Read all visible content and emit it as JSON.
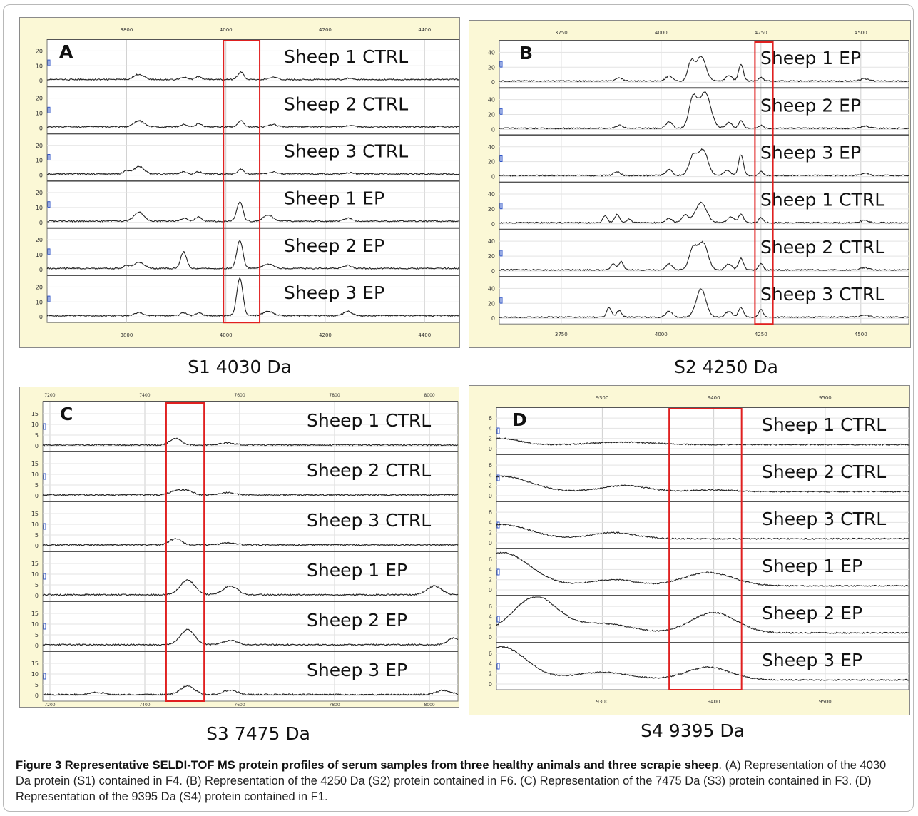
{
  "figure": {
    "caption_label": "Figure 3",
    "caption_title": "Representative SELDI-TOF MS protein profiles of serum samples from three healthy animals and three scrapie sheep",
    "caption_body": ". (A) Representation of the 4030 Da protein (S1) contained in F4. (B) Representation of the 4250 Da (S2) protein contained in F6. (C) Representation of the 7475 Da (S3) protein contained in F3. (D) Representation of the 9395 Da (S4) protein contained in F1."
  },
  "colors": {
    "panel_bg": "#fbf8d6",
    "plot_bg": "#ffffff",
    "trace": "#222222",
    "highlight": "#e02020",
    "grid": "#cfcfcf"
  },
  "chart_data": [
    {
      "type": "line",
      "letter": "A",
      "title": "S1 4030 Da",
      "xlim": [
        3640,
        4470
      ],
      "x_ticks": [
        "3800",
        "4000",
        "4200",
        "4400"
      ],
      "y_ticks": [
        "0",
        "10",
        "20"
      ],
      "ylim": [
        0,
        24
      ],
      "highlight_range": [
        3995,
        4068
      ],
      "baseline": 0.8,
      "tracks": [
        {
          "label": "Sheep 1 CTRL",
          "peaks": [
            [
              3825,
              3.5,
              10
            ],
            [
              3915,
              1.5,
              7
            ],
            [
              3945,
              2,
              6
            ],
            [
              4030,
              5,
              6
            ],
            [
              4095,
              1.5,
              8
            ],
            [
              4250,
              1,
              8
            ]
          ]
        },
        {
          "label": "Sheep 2 CTRL",
          "peaks": [
            [
              3825,
              4,
              10
            ],
            [
              3915,
              1.5,
              7
            ],
            [
              3945,
              2,
              6
            ],
            [
              4030,
              4,
              6
            ],
            [
              4095,
              1.5,
              8
            ],
            [
              4250,
              1,
              8
            ]
          ]
        },
        {
          "label": "Sheep 3 CTRL",
          "peaks": [
            [
              3800,
              2,
              6
            ],
            [
              3825,
              5,
              10
            ],
            [
              3915,
              1.5,
              7
            ],
            [
              3945,
              1.5,
              6
            ],
            [
              4030,
              3,
              6
            ],
            [
              4095,
              1.5,
              8
            ],
            [
              4250,
              1,
              8
            ]
          ]
        },
        {
          "label": "Sheep 1 EP",
          "peaks": [
            [
              3825,
              6,
              10
            ],
            [
              3915,
              2,
              7
            ],
            [
              3945,
              3,
              6
            ],
            [
              4028,
              13,
              6
            ],
            [
              4085,
              4,
              10
            ],
            [
              4245,
              2,
              8
            ]
          ]
        },
        {
          "label": "Sheep 2 EP",
          "peaks": [
            [
              3800,
              2,
              6
            ],
            [
              3825,
              4,
              10
            ],
            [
              3915,
              11,
              6
            ],
            [
              4028,
              19,
              6
            ],
            [
              4085,
              3,
              10
            ],
            [
              4245,
              2,
              8
            ]
          ]
        },
        {
          "label": "Sheep 3 EP",
          "peaks": [
            [
              3825,
              2,
              8
            ],
            [
              3915,
              2,
              6
            ],
            [
              3945,
              2,
              6
            ],
            [
              4028,
              25,
              6
            ],
            [
              4085,
              3,
              10
            ],
            [
              4245,
              3,
              8
            ]
          ]
        }
      ]
    },
    {
      "type": "line",
      "letter": "B",
      "title": "S2 4250 Da",
      "xlim": [
        3595,
        4620
      ],
      "x_ticks": [
        "3750",
        "4000",
        "4250",
        "4500"
      ],
      "y_ticks": [
        "0",
        "20",
        "40"
      ],
      "ylim": [
        0,
        48
      ],
      "highlight_range": [
        4235,
        4280
      ],
      "baseline": 1.5,
      "tracks": [
        {
          "label": "Sheep 1 EP",
          "peaks": [
            [
              3895,
              4,
              8
            ],
            [
              4020,
              7,
              8
            ],
            [
              4075,
              25,
              8
            ],
            [
              4100,
              33,
              12
            ],
            [
              4170,
              7,
              8
            ],
            [
              4200,
              22,
              6
            ],
            [
              4250,
              5,
              5
            ],
            [
              4510,
              3,
              10
            ]
          ]
        },
        {
          "label": "Sheep 2 EP",
          "peaks": [
            [
              3895,
              4,
              8
            ],
            [
              4020,
              9,
              8
            ],
            [
              4080,
              40,
              10
            ],
            [
              4110,
              48,
              14
            ],
            [
              4170,
              8,
              8
            ],
            [
              4200,
              10,
              6
            ],
            [
              4250,
              4,
              5
            ],
            [
              4510,
              3,
              10
            ]
          ]
        },
        {
          "label": "Sheep 3 EP",
          "peaks": [
            [
              3890,
              5,
              8
            ],
            [
              4020,
              8,
              8
            ],
            [
              4080,
              25,
              10
            ],
            [
              4105,
              34,
              12
            ],
            [
              4165,
              7,
              8
            ],
            [
              4200,
              28,
              6
            ],
            [
              4250,
              5,
              5
            ],
            [
              4510,
              3,
              10
            ]
          ]
        },
        {
          "label": "Sheep 1 CTRL",
          "peaks": [
            [
              3860,
              9,
              6
            ],
            [
              3890,
              11,
              6
            ],
            [
              3920,
              5,
              6
            ],
            [
              4020,
              6,
              8
            ],
            [
              4060,
              10,
              8
            ],
            [
              4100,
              27,
              14
            ],
            [
              4175,
              8,
              8
            ],
            [
              4200,
              12,
              6
            ],
            [
              4250,
              7,
              5
            ],
            [
              4510,
              3,
              10
            ]
          ]
        },
        {
          "label": "Sheep 2 CTRL",
          "peaks": [
            [
              3880,
              8,
              6
            ],
            [
              3900,
              11,
              6
            ],
            [
              4020,
              8,
              8
            ],
            [
              4080,
              28,
              10
            ],
            [
              4105,
              36,
              12
            ],
            [
              4170,
              8,
              8
            ],
            [
              4200,
              16,
              6
            ],
            [
              4250,
              9,
              5
            ],
            [
              4510,
              3,
              10
            ]
          ]
        },
        {
          "label": "Sheep 3 CTRL",
          "peaks": [
            [
              3870,
              13,
              6
            ],
            [
              3895,
              9,
              6
            ],
            [
              4020,
              8,
              8
            ],
            [
              4100,
              38,
              12
            ],
            [
              4170,
              8,
              8
            ],
            [
              4200,
              13,
              6
            ],
            [
              4250,
              11,
              5
            ],
            [
              4510,
              3,
              10
            ]
          ]
        }
      ]
    },
    {
      "type": "line",
      "letter": "C",
      "title": "S3 7475 Da",
      "xlim": [
        7185,
        8060
      ],
      "x_ticks": [
        "7200",
        "7400",
        "7600",
        "7800",
        "8000"
      ],
      "y_ticks": [
        "0",
        "5",
        "10",
        "15"
      ],
      "ylim": [
        0,
        18
      ],
      "highlight_range": [
        7445,
        7525
      ],
      "baseline": 0.4,
      "tracks": [
        {
          "label": "Sheep 1 CTRL",
          "peaks": [
            [
              7465,
              3,
              12
            ],
            [
              7575,
              1,
              15
            ]
          ]
        },
        {
          "label": "Sheep 2 CTRL",
          "peaks": [
            [
              7465,
              2,
              12
            ],
            [
              7490,
              2,
              12
            ],
            [
              7575,
              1,
              15
            ]
          ]
        },
        {
          "label": "Sheep 3 CTRL",
          "peaks": [
            [
              7465,
              3,
              12
            ],
            [
              7575,
              1,
              15
            ]
          ]
        },
        {
          "label": "Sheep 1 EP",
          "peaks": [
            [
              7490,
              7,
              15
            ],
            [
              7580,
              4,
              15
            ],
            [
              8010,
              4,
              15
            ]
          ]
        },
        {
          "label": "Sheep 2 EP",
          "peaks": [
            [
              7490,
              7,
              15
            ],
            [
              7580,
              2,
              15
            ],
            [
              8050,
              3,
              12
            ]
          ]
        },
        {
          "label": "Sheep 3 EP",
          "peaks": [
            [
              7300,
              1,
              15
            ],
            [
              7490,
              4,
              15
            ],
            [
              7580,
              2,
              15
            ],
            [
              8030,
              2,
              15
            ]
          ]
        }
      ]
    },
    {
      "type": "line",
      "letter": "D",
      "title": "S4 9395 Da",
      "xlim": [
        9205,
        9575
      ],
      "x_ticks": [
        "9300",
        "9400",
        "9500"
      ],
      "y_ticks": [
        "0",
        "2",
        "4",
        "6"
      ],
      "ylim": [
        0,
        7
      ],
      "highlight_range": [
        9360,
        9425
      ],
      "baseline": 0.8,
      "tracks": [
        {
          "label": "Sheep 1 CTRL",
          "peaks": [
            [
              9210,
              1.2,
              15
            ],
            [
              9320,
              0.5,
              25
            ]
          ]
        },
        {
          "label": "Sheep 2 CTRL",
          "peaks": [
            [
              9210,
              3,
              25
            ],
            [
              9320,
              1.2,
              20
            ],
            [
              9400,
              0.3,
              20
            ]
          ]
        },
        {
          "label": "Sheep 3 CTRL",
          "peaks": [
            [
              9210,
              2.8,
              25
            ],
            [
              9310,
              1.2,
              20
            ]
          ]
        },
        {
          "label": "Sheep 1 EP",
          "peaks": [
            [
              9210,
              6.5,
              25
            ],
            [
              9310,
              1.2,
              20
            ],
            [
              9395,
              2.6,
              22
            ]
          ]
        },
        {
          "label": "Sheep 2 EP",
          "peaks": [
            [
              9240,
              7,
              20
            ],
            [
              9300,
              1.8,
              25
            ],
            [
              9400,
              4,
              20
            ]
          ]
        },
        {
          "label": "Sheep 3 EP",
          "peaks": [
            [
              9210,
              6.5,
              22
            ],
            [
              9300,
              1.5,
              25
            ],
            [
              9395,
              2.5,
              20
            ]
          ]
        }
      ]
    }
  ]
}
